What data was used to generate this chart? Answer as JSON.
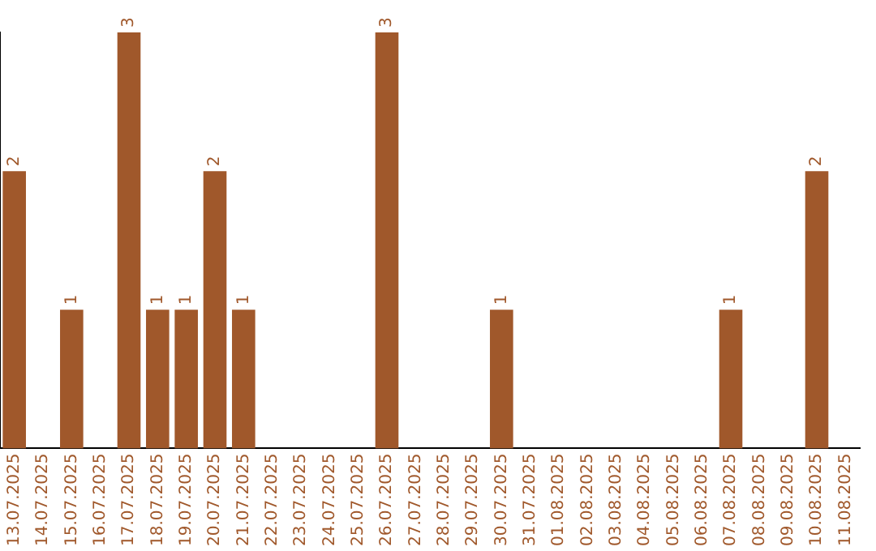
{
  "chart_data": {
    "type": "bar",
    "categories": [
      "13.07.2025",
      "14.07.2025",
      "15.07.2025",
      "16.07.2025",
      "17.07.2025",
      "18.07.2025",
      "19.07.2025",
      "20.07.2025",
      "21.07.2025",
      "22.07.2025",
      "23.07.2025",
      "24.07.2025",
      "25.07.2025",
      "26.07.2025",
      "27.07.2025",
      "28.07.2025",
      "29.07.2025",
      "30.07.2025",
      "31.07.2025",
      "01.08.2025",
      "02.08.2025",
      "03.08.2025",
      "04.08.2025",
      "05.08.2025",
      "06.08.2025",
      "07.08.2025",
      "08.08.2025",
      "09.08.2025",
      "10.08.2025",
      "11.08.2025"
    ],
    "values": [
      2,
      0,
      1,
      0,
      3,
      1,
      1,
      2,
      1,
      0,
      0,
      0,
      0,
      3,
      0,
      0,
      0,
      1,
      0,
      0,
      0,
      0,
      0,
      0,
      0,
      1,
      0,
      0,
      2,
      0
    ],
    "value_labels": [
      "2",
      null,
      "1",
      null,
      "3",
      "1",
      "1",
      "2",
      "1",
      null,
      null,
      null,
      null,
      "3",
      null,
      null,
      null,
      "1",
      null,
      null,
      null,
      null,
      null,
      null,
      null,
      "1",
      null,
      null,
      "2",
      null
    ],
    "color": "#a0582b",
    "grid": false,
    "legend": false,
    "tick_labels": "x"
  }
}
